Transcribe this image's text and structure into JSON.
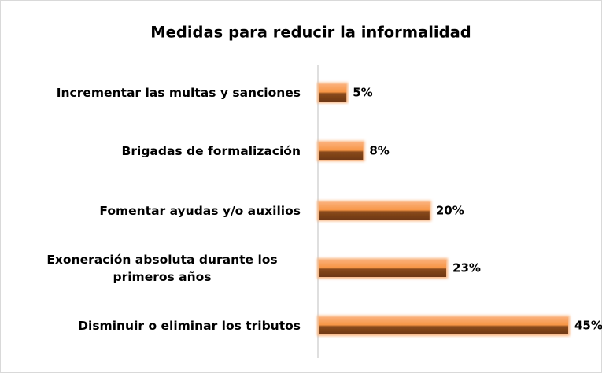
{
  "chart_data": {
    "type": "bar",
    "orientation": "horizontal",
    "title": "Medidas para reducir la informalidad",
    "categories": [
      "Incrementar las multas y sanciones",
      "Brigadas de formalización",
      "Fomentar ayudas y/o auxilios",
      "Exoneración absoluta durante los primeros años",
      "Disminuir o eliminar los tributos"
    ],
    "values": [
      5,
      8,
      20,
      23,
      45
    ],
    "value_labels": [
      "5%",
      "8%",
      "20%",
      "23%",
      "45%"
    ],
    "color": "#f79646"
  }
}
